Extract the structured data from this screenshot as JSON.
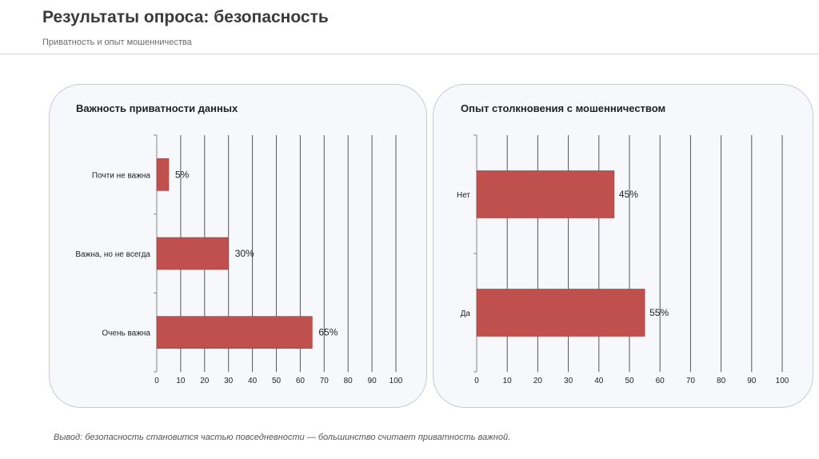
{
  "page": {
    "title": "Результаты опроса: безопасность",
    "subtitle": "Приватность и опыт мошенничества",
    "conclusion": "Вывод: безопасность становится частью повседневности — большинство считает приватность важной."
  },
  "colors": {
    "bar": "#c0504d"
  },
  "chart_data": [
    {
      "type": "bar",
      "orientation": "horizontal",
      "title": "Важность приватности данных",
      "categories": [
        "Почти не важна",
        "Важна, но не всегда",
        "Очень важна"
      ],
      "values": [
        5,
        30,
        65
      ],
      "labels": [
        "5%",
        "30%",
        "65%"
      ],
      "xlim": [
        0,
        100
      ],
      "xticks": [
        0,
        10,
        20,
        30,
        40,
        50,
        60,
        70,
        80,
        90,
        100
      ],
      "grid": true,
      "xlabel": "",
      "ylabel": ""
    },
    {
      "type": "bar",
      "orientation": "horizontal",
      "title": "Опыт столкновения с мошенничеством",
      "categories": [
        "Нет",
        "Да"
      ],
      "values": [
        45,
        55
      ],
      "labels": [
        "45%",
        "55%"
      ],
      "xlim": [
        0,
        100
      ],
      "xticks": [
        0,
        10,
        20,
        30,
        40,
        50,
        60,
        70,
        80,
        90,
        100
      ],
      "grid": true,
      "xlabel": "",
      "ylabel": ""
    }
  ]
}
